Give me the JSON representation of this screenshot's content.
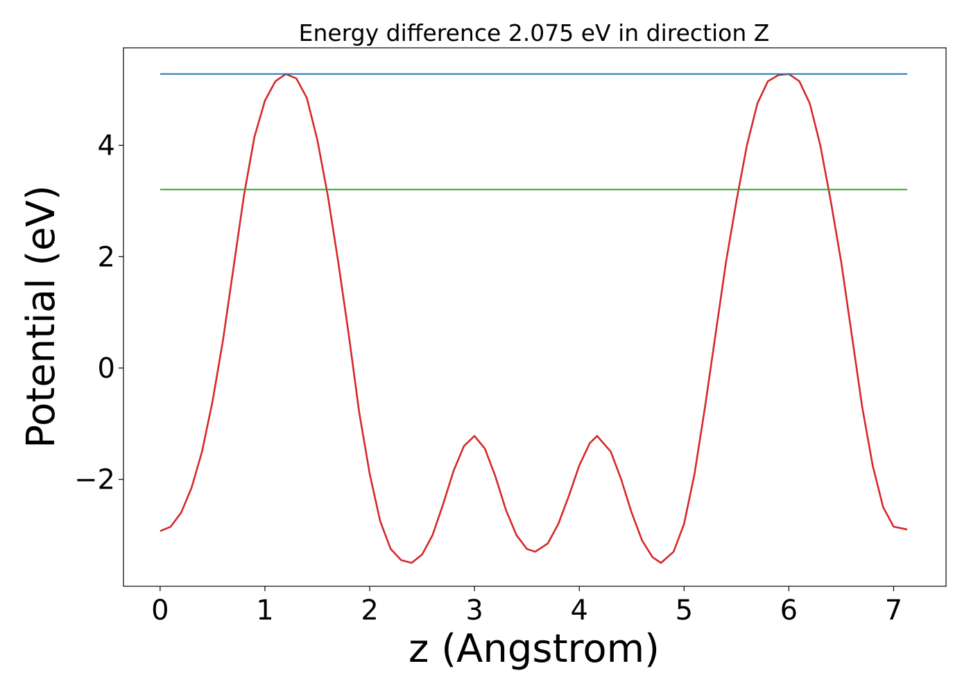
{
  "chart_data": {
    "type": "line",
    "title": "Energy difference 2.075 eV in direction Z",
    "xlabel": "z (Angstrom)",
    "ylabel": "Potential (eV)",
    "xlim": [
      -0.35,
      7.5
    ],
    "ylim": [
      -3.92,
      5.75
    ],
    "x_ticks": [
      0,
      1,
      2,
      3,
      4,
      5,
      6,
      7
    ],
    "x_tick_labels": [
      "0",
      "1",
      "2",
      "3",
      "4",
      "5",
      "6",
      "7"
    ],
    "y_ticks": [
      -2,
      0,
      2,
      4
    ],
    "y_tick_labels": [
      "−2",
      "0",
      "2",
      "4"
    ],
    "grid": false,
    "legend": "none",
    "series": [
      {
        "color": "#d62728",
        "points": [
          [
            0.0,
            -2.93
          ],
          [
            0.1,
            -2.85
          ],
          [
            0.2,
            -2.6
          ],
          [
            0.3,
            -2.15
          ],
          [
            0.4,
            -1.5
          ],
          [
            0.5,
            -0.6
          ],
          [
            0.6,
            0.5
          ],
          [
            0.7,
            1.8
          ],
          [
            0.8,
            3.1
          ],
          [
            0.9,
            4.15
          ],
          [
            1.0,
            4.8
          ],
          [
            1.1,
            5.15
          ],
          [
            1.2,
            5.28
          ],
          [
            1.3,
            5.2
          ],
          [
            1.4,
            4.85
          ],
          [
            1.5,
            4.1
          ],
          [
            1.6,
            3.1
          ],
          [
            1.7,
            1.9
          ],
          [
            1.8,
            0.6
          ],
          [
            1.9,
            -0.8
          ],
          [
            2.0,
            -1.9
          ],
          [
            2.1,
            -2.75
          ],
          [
            2.2,
            -3.25
          ],
          [
            2.3,
            -3.45
          ],
          [
            2.4,
            -3.5
          ],
          [
            2.5,
            -3.35
          ],
          [
            2.6,
            -3.0
          ],
          [
            2.7,
            -2.45
          ],
          [
            2.8,
            -1.85
          ],
          [
            2.9,
            -1.4
          ],
          [
            3.0,
            -1.22
          ],
          [
            3.1,
            -1.45
          ],
          [
            3.2,
            -1.95
          ],
          [
            3.3,
            -2.55
          ],
          [
            3.4,
            -3.0
          ],
          [
            3.5,
            -3.25
          ],
          [
            3.58,
            -3.3
          ],
          [
            3.7,
            -3.15
          ],
          [
            3.8,
            -2.8
          ],
          [
            3.9,
            -2.3
          ],
          [
            4.0,
            -1.75
          ],
          [
            4.1,
            -1.35
          ],
          [
            4.17,
            -1.22
          ],
          [
            4.3,
            -1.5
          ],
          [
            4.4,
            -2.0
          ],
          [
            4.5,
            -2.6
          ],
          [
            4.6,
            -3.1
          ],
          [
            4.7,
            -3.4
          ],
          [
            4.78,
            -3.5
          ],
          [
            4.9,
            -3.3
          ],
          [
            5.0,
            -2.8
          ],
          [
            5.1,
            -1.9
          ],
          [
            5.2,
            -0.7
          ],
          [
            5.3,
            0.6
          ],
          [
            5.4,
            1.9
          ],
          [
            5.5,
            3.0
          ],
          [
            5.6,
            4.0
          ],
          [
            5.7,
            4.75
          ],
          [
            5.8,
            5.15
          ],
          [
            5.9,
            5.26
          ],
          [
            6.0,
            5.28
          ],
          [
            6.1,
            5.15
          ],
          [
            6.2,
            4.75
          ],
          [
            6.3,
            4.0
          ],
          [
            6.4,
            3.0
          ],
          [
            6.5,
            1.9
          ],
          [
            6.6,
            0.6
          ],
          [
            6.7,
            -0.7
          ],
          [
            6.8,
            -1.75
          ],
          [
            6.9,
            -2.5
          ],
          [
            7.0,
            -2.85
          ],
          [
            7.13,
            -2.9
          ]
        ]
      },
      {
        "color": "#1f77b4",
        "points": [
          [
            0.0,
            5.28
          ],
          [
            7.13,
            5.28
          ]
        ]
      },
      {
        "color": "#2ca02c",
        "points": [
          [
            0.0,
            3.205
          ],
          [
            7.13,
            3.205
          ]
        ]
      }
    ]
  }
}
